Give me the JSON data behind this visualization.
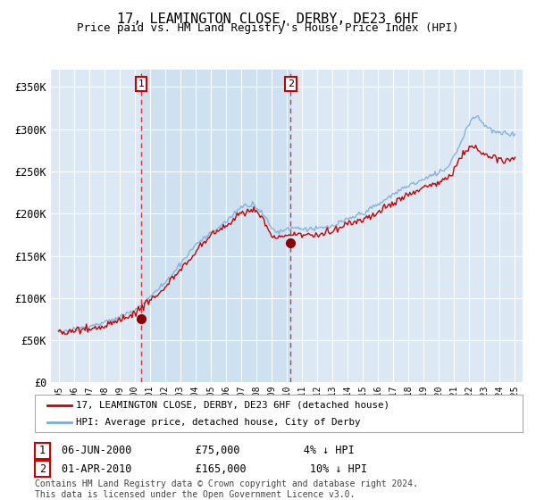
{
  "title": "17, LEAMINGTON CLOSE, DERBY, DE23 6HF",
  "subtitle": "Price paid vs. HM Land Registry's House Price Index (HPI)",
  "title_fontsize": 11,
  "subtitle_fontsize": 9,
  "ylabel_ticks": [
    "£0",
    "£50K",
    "£100K",
    "£150K",
    "£200K",
    "£250K",
    "£300K",
    "£350K"
  ],
  "ytick_values": [
    0,
    50000,
    100000,
    150000,
    200000,
    250000,
    300000,
    350000
  ],
  "ylim": [
    0,
    370000
  ],
  "xlim_start": 1994.5,
  "xlim_end": 2025.5,
  "background_color": "#ffffff",
  "plot_bg_color": "#dce9f5",
  "grid_color": "#ffffff",
  "hpi_line_color": "#7aaddb",
  "price_line_color": "#cc0000",
  "marker_color": "#880000",
  "dashed_line_color": "#dd3333",
  "marker1_x": 2000.44,
  "marker1_y": 75000,
  "marker2_x": 2010.25,
  "marker2_y": 165000,
  "legend_hpi_label": "HPI: Average price, detached house, City of Derby",
  "legend_price_label": "17, LEAMINGTON CLOSE, DERBY, DE23 6HF (detached house)",
  "footnote": "Contains HM Land Registry data © Crown copyright and database right 2024.\nThis data is licensed under the Open Government Licence v3.0.",
  "table_rows": [
    {
      "num": "1",
      "date": "06-JUN-2000",
      "price": "£75,000",
      "pct": "4% ↓ HPI"
    },
    {
      "num": "2",
      "date": "01-APR-2010",
      "price": "£165,000",
      "pct": "10% ↓ HPI"
    }
  ]
}
